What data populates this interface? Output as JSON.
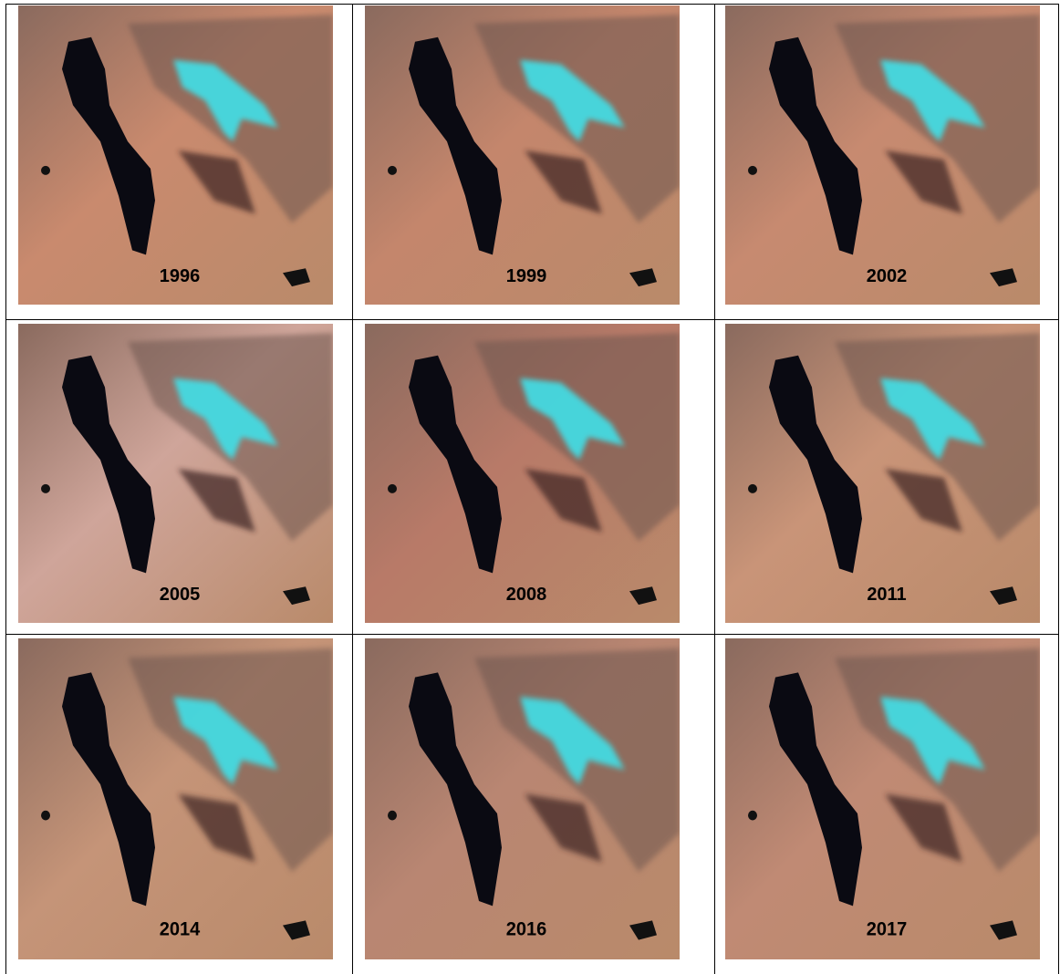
{
  "panels": [
    {
      "label": "1996"
    },
    {
      "label": "1999"
    },
    {
      "label": "2002"
    },
    {
      "label": "2005"
    },
    {
      "label": "2008"
    },
    {
      "label": "2011"
    },
    {
      "label": "2014"
    },
    {
      "label": "2016"
    },
    {
      "label": "2017"
    }
  ]
}
